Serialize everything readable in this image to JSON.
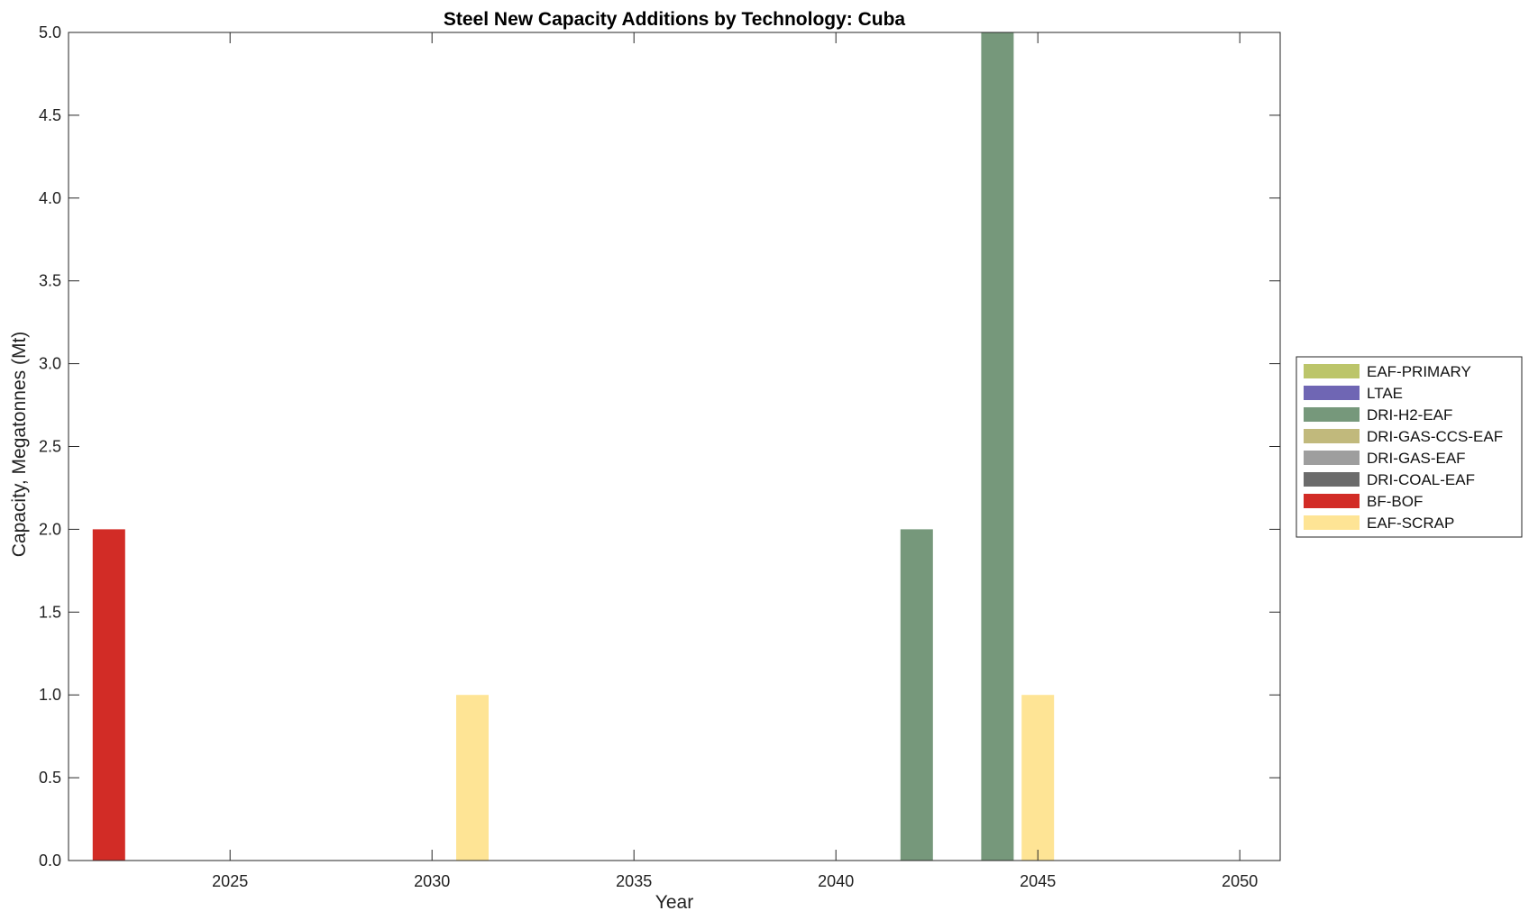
{
  "chart_data": {
    "type": "bar",
    "title": "Steel New Capacity Additions by Technology: Cuba",
    "xlabel": "Year",
    "ylabel": "Capacity, Megatonnes (Mt)",
    "xlim": [
      2021,
      2051
    ],
    "ylim": [
      0,
      5
    ],
    "xticks": [
      2025,
      2030,
      2035,
      2040,
      2045,
      2050
    ],
    "yticks": [
      0,
      0.5,
      1,
      1.5,
      2,
      2.5,
      3,
      3.5,
      4,
      4.5,
      5
    ],
    "ytick_labels": [
      "0.0",
      "0.5",
      "1.0",
      "1.5",
      "2.0",
      "2.5",
      "3.0",
      "3.5",
      "4.0",
      "4.5",
      "5.0"
    ],
    "grid": false,
    "legend_position": "outside-right",
    "series": [
      {
        "name": "EAF-PRIMARY",
        "color": "#bcc56a",
        "points": []
      },
      {
        "name": "LTAE",
        "color": "#6f66b4",
        "points": []
      },
      {
        "name": "DRI-H2-EAF",
        "color": "#76987b",
        "points": [
          {
            "x": 2042,
            "y": 2.0
          },
          {
            "x": 2044,
            "y": 5.0
          }
        ]
      },
      {
        "name": "DRI-GAS-CCS-EAF",
        "color": "#c1b97c",
        "points": []
      },
      {
        "name": "DRI-GAS-EAF",
        "color": "#9e9e9e",
        "points": []
      },
      {
        "name": "DRI-COAL-EAF",
        "color": "#6b6b6b",
        "points": []
      },
      {
        "name": "BF-BOF",
        "color": "#d22c26",
        "points": [
          {
            "x": 2022,
            "y": 2.0
          }
        ]
      },
      {
        "name": "EAF-SCRAP",
        "color": "#fee495",
        "points": [
          {
            "x": 2031,
            "y": 1.0
          },
          {
            "x": 2045,
            "y": 1.0
          }
        ]
      }
    ]
  }
}
